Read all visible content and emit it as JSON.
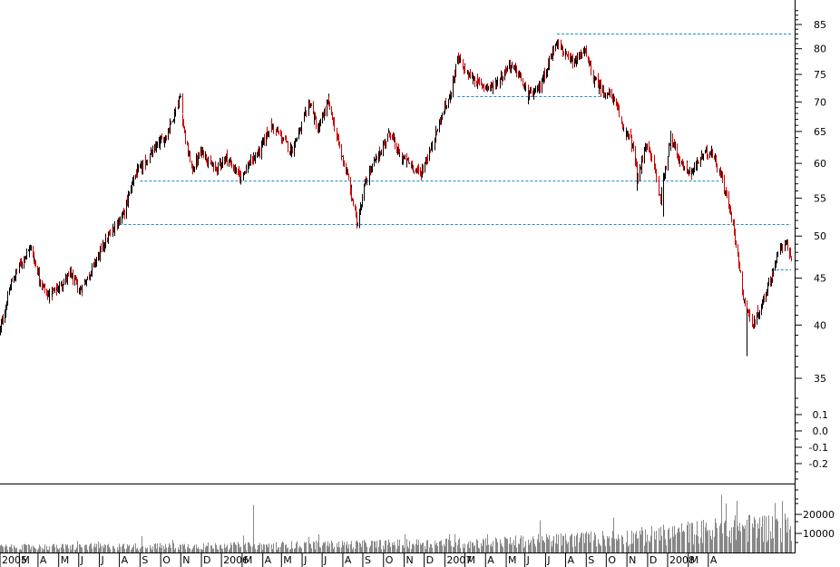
{
  "chart_data": [
    {
      "type": "candlestick",
      "scale": "log",
      "x_tick_labels": [
        "2005",
        "M",
        "A",
        "M",
        "J",
        "J",
        "A",
        "S",
        "O",
        "N",
        "D",
        "2006",
        "M",
        "A",
        "M",
        "J",
        "J",
        "A",
        "S",
        "O",
        "N",
        "D",
        "2007",
        "M",
        "A",
        "M",
        "J",
        "J",
        "A",
        "S",
        "O",
        "N",
        "D",
        "2008",
        "M",
        "A"
      ],
      "y_tick_labels": [
        "85",
        "80",
        "75",
        "70",
        "65",
        "60",
        "55",
        "50",
        "45",
        "40",
        "35"
      ],
      "y_ticks": [
        85,
        80,
        75,
        70,
        65,
        60,
        55,
        50,
        45,
        40,
        35
      ],
      "y_range": [
        33,
        88
      ],
      "date_range": [
        "2005-01-03",
        "2008-04-03"
      ],
      "price_path": [
        [
          "2005-01-03",
          39.5
        ],
        [
          "2005-01-20",
          44.5
        ],
        [
          "2005-02-08",
          47.5
        ],
        [
          "2005-02-18",
          48.5
        ],
        [
          "2005-03-03",
          45.0
        ],
        [
          "2005-03-15",
          43.0
        ],
        [
          "2005-04-01",
          44.0
        ],
        [
          "2005-04-18",
          45.5
        ],
        [
          "2005-05-02",
          43.5
        ],
        [
          "2005-05-20",
          46.0
        ],
        [
          "2005-06-08",
          49.0
        ],
        [
          "2005-06-25",
          51.5
        ],
        [
          "2005-07-08",
          53.0
        ],
        [
          "2005-07-22",
          58.0
        ],
        [
          "2005-08-08",
          60.0
        ],
        [
          "2005-08-25",
          62.5
        ],
        [
          "2005-09-10",
          64.5
        ],
        [
          "2005-09-30",
          71.0
        ],
        [
          "2005-10-08",
          63.0
        ],
        [
          "2005-10-18",
          59.0
        ],
        [
          "2005-11-01",
          62.0
        ],
        [
          "2005-11-20",
          59.0
        ],
        [
          "2005-12-08",
          61.0
        ],
        [
          "2005-12-28",
          58.0
        ],
        [
          "2006-01-12",
          60.0
        ],
        [
          "2006-01-28",
          62.0
        ],
        [
          "2006-02-12",
          66.0
        ],
        [
          "2006-03-01",
          64.0
        ],
        [
          "2006-03-15",
          62.0
        ],
        [
          "2006-03-28",
          65.0
        ],
        [
          "2006-04-12",
          70.0
        ],
        [
          "2006-04-24",
          65.0
        ],
        [
          "2006-05-10",
          70.0
        ],
        [
          "2006-05-25",
          63.0
        ],
        [
          "2006-06-08",
          58.0
        ],
        [
          "2006-06-22",
          51.5
        ],
        [
          "2006-07-01",
          56.0
        ],
        [
          "2006-07-12",
          59.0
        ],
        [
          "2006-07-28",
          62.0
        ],
        [
          "2006-08-10",
          65.0
        ],
        [
          "2006-08-25",
          61.0
        ],
        [
          "2006-09-08",
          60.0
        ],
        [
          "2006-09-25",
          58.5
        ],
        [
          "2006-10-10",
          62.0
        ],
        [
          "2006-10-25",
          67.0
        ],
        [
          "2006-11-08",
          71.0
        ],
        [
          "2006-11-20",
          78.0
        ],
        [
          "2006-12-05",
          75.0
        ],
        [
          "2006-12-20",
          73.5
        ],
        [
          "2007-01-08",
          72.5
        ],
        [
          "2007-01-22",
          74.0
        ],
        [
          "2007-02-05",
          77.0
        ],
        [
          "2007-02-20",
          75.0
        ],
        [
          "2007-03-05",
          71.0
        ],
        [
          "2007-03-20",
          72.0
        ],
        [
          "2007-04-05",
          77.0
        ],
        [
          "2007-04-18",
          82.0
        ],
        [
          "2007-05-02",
          78.0
        ],
        [
          "2007-05-15",
          77.0
        ],
        [
          "2007-05-28",
          80.0
        ],
        [
          "2007-06-12",
          74.0
        ],
        [
          "2007-06-25",
          72.0
        ],
        [
          "2007-07-10",
          71.0
        ],
        [
          "2007-07-25",
          66.0
        ],
        [
          "2007-08-08",
          63.0
        ],
        [
          "2007-08-18",
          57.5
        ],
        [
          "2007-08-28",
          63.0
        ],
        [
          "2007-09-10",
          60.0
        ],
        [
          "2007-09-20",
          55.0
        ],
        [
          "2007-10-05",
          64.0
        ],
        [
          "2007-10-20",
          60.0
        ],
        [
          "2007-11-05",
          58.5
        ],
        [
          "2007-11-20",
          61.0
        ],
        [
          "2007-12-05",
          62.0
        ],
        [
          "2007-12-20",
          58.0
        ],
        [
          "2008-01-08",
          51.0
        ],
        [
          "2008-01-22",
          43.0
        ],
        [
          "2008-02-05",
          40.0
        ],
        [
          "2008-02-18",
          42.0
        ],
        [
          "2008-03-03",
          45.0
        ],
        [
          "2008-03-15",
          48.0
        ],
        [
          "2008-03-25",
          49.5
        ],
        [
          "2008-04-03",
          47.0
        ]
      ],
      "support_resistance_levels": [
        {
          "price": 83.0,
          "from": "2007-04-18",
          "to": "2008-04-03"
        },
        {
          "price": 71.0,
          "from": "2006-11-20",
          "to": "2007-06-28"
        },
        {
          "price": 57.5,
          "from": "2005-08-01",
          "to": "2007-12-20"
        },
        {
          "price": 51.5,
          "from": "2005-07-01",
          "to": "2008-04-03"
        },
        {
          "price": 46.0,
          "from": "2008-03-05",
          "to": "2008-04-03"
        }
      ],
      "indicator_tick_labels": [
        "0.1",
        "0.0",
        "-0.1",
        "-0.2"
      ],
      "indicator_ticks": [
        0.1,
        0.0,
        -0.1,
        -0.2
      ],
      "colors": {
        "up": "#000000",
        "down": "#cc0000",
        "level_line": "#1a8fc4"
      }
    },
    {
      "type": "bar",
      "series": "volume",
      "y_tick_labels": [
        "20000",
        "10000"
      ],
      "y_ticks": [
        20000,
        10000
      ],
      "ylim": [
        0,
        27000
      ],
      "typical_range": [
        1500,
        9000
      ],
      "trend": [
        [
          "2005-01-03",
          3000
        ],
        [
          "2006-01-01",
          3800
        ],
        [
          "2007-01-01",
          5500
        ],
        [
          "2007-08-15",
          9000
        ],
        [
          "2008-01-20",
          14000
        ],
        [
          "2008-04-03",
          15000
        ]
      ],
      "spikes": [
        [
          "2006-01-18",
          25000
        ],
        [
          "2007-12-20",
          24000
        ],
        [
          "2008-01-12",
          27000
        ],
        [
          "2008-03-10",
          26000
        ],
        [
          "2008-03-20",
          27000
        ]
      ],
      "colors": {
        "bar": "#888888"
      }
    }
  ]
}
